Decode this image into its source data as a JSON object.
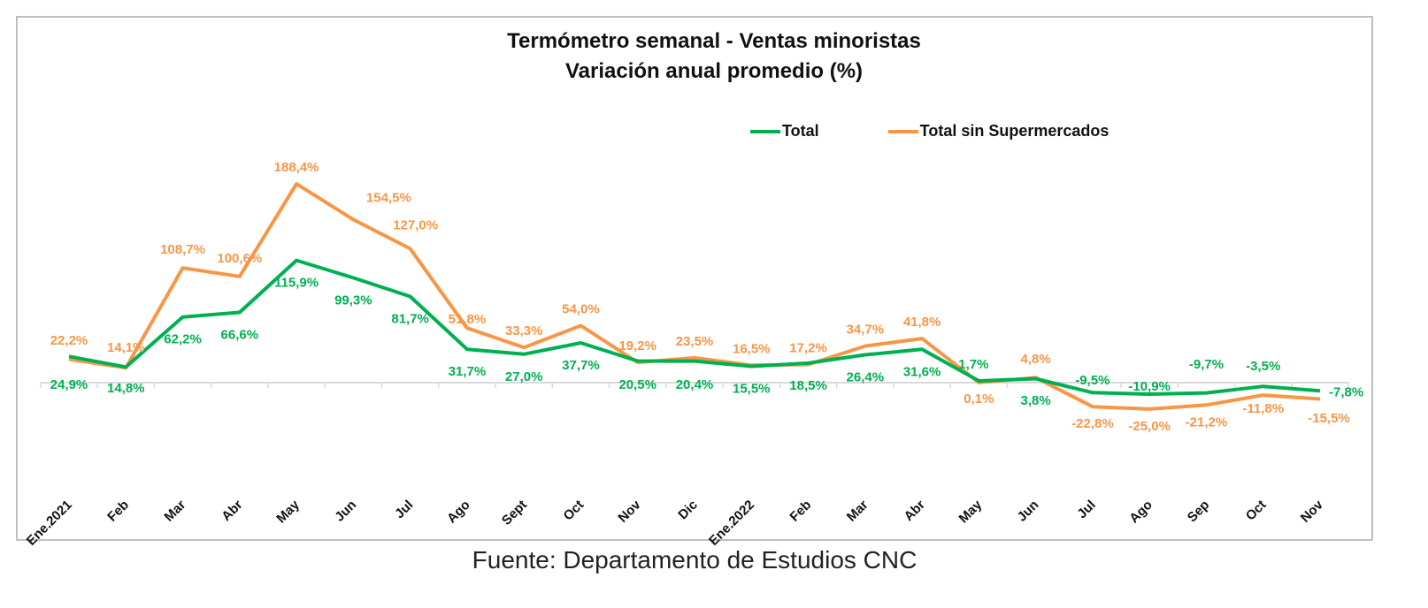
{
  "chart_data": {
    "type": "line",
    "title": "Termómetro semanal - Ventas minoristas",
    "subtitle": "Variación anual promedio (%)",
    "xlabel": "",
    "ylabel": "",
    "ylim": [
      -55,
      200
    ],
    "grid": false,
    "legend_position": "top-right",
    "categories": [
      "Ene.2021",
      "Feb",
      "Mar",
      "Abr",
      "May",
      "Jun",
      "Jul",
      "Ago",
      "Sept",
      "Oct",
      "Nov",
      "Dic",
      "Ene.2022",
      "Feb",
      "Mar",
      "Abr",
      "May",
      "Jun",
      "Jul",
      "Ago",
      "Sep",
      "Oct",
      "Nov"
    ],
    "series": [
      {
        "name": "Total",
        "color": "#00b050",
        "values": [
          24.9,
          14.8,
          62.2,
          66.6,
          115.9,
          99.3,
          81.7,
          31.7,
          27.0,
          37.7,
          20.5,
          20.4,
          15.5,
          18.5,
          26.4,
          31.6,
          1.7,
          3.8,
          -9.5,
          -10.9,
          -9.7,
          -3.5,
          -7.8
        ],
        "labels": [
          "24,9%",
          "14,8%",
          "62,2%",
          "66,6%",
          "115,9%",
          "99,3%",
          "81,7%",
          "31,7%",
          "27,0%",
          "37,7%",
          "20,5%",
          "20,4%",
          "15,5%",
          "18,5%",
          "26,4%",
          "31,6%",
          "1,7%",
          "3,8%",
          "-9,5%",
          "-10,9%",
          "-9,7%",
          "-3,5%",
          "-7,8%"
        ]
      },
      {
        "name": "Total sin Supermercados",
        "color": "#f79646",
        "values": [
          22.2,
          14.1,
          108.7,
          100.6,
          188.4,
          154.5,
          127.0,
          51.8,
          33.3,
          54.0,
          19.2,
          23.5,
          16.5,
          17.2,
          34.7,
          41.8,
          0.1,
          4.8,
          -22.8,
          -25.0,
          -21.2,
          -11.8,
          -15.5
        ],
        "labels": [
          "22,2%",
          "14,1%",
          "108,7%",
          "100,6%",
          "188,4%",
          "154,5%",
          "127,0%",
          "51,8%",
          "33,3%",
          "54,0%",
          "19,2%",
          "23,5%",
          "16,5%",
          "17,2%",
          "34,7%",
          "41,8%",
          "0,1%",
          "4,8%",
          "-22,8%",
          "-25,0%",
          "-21,2%",
          "-11,8%",
          "-15,5%"
        ]
      }
    ]
  },
  "legend": {
    "total_label": "Total",
    "sin_super_label": "Total sin Supermercados"
  },
  "source": "Fuente: Departamento de Estudios CNC"
}
